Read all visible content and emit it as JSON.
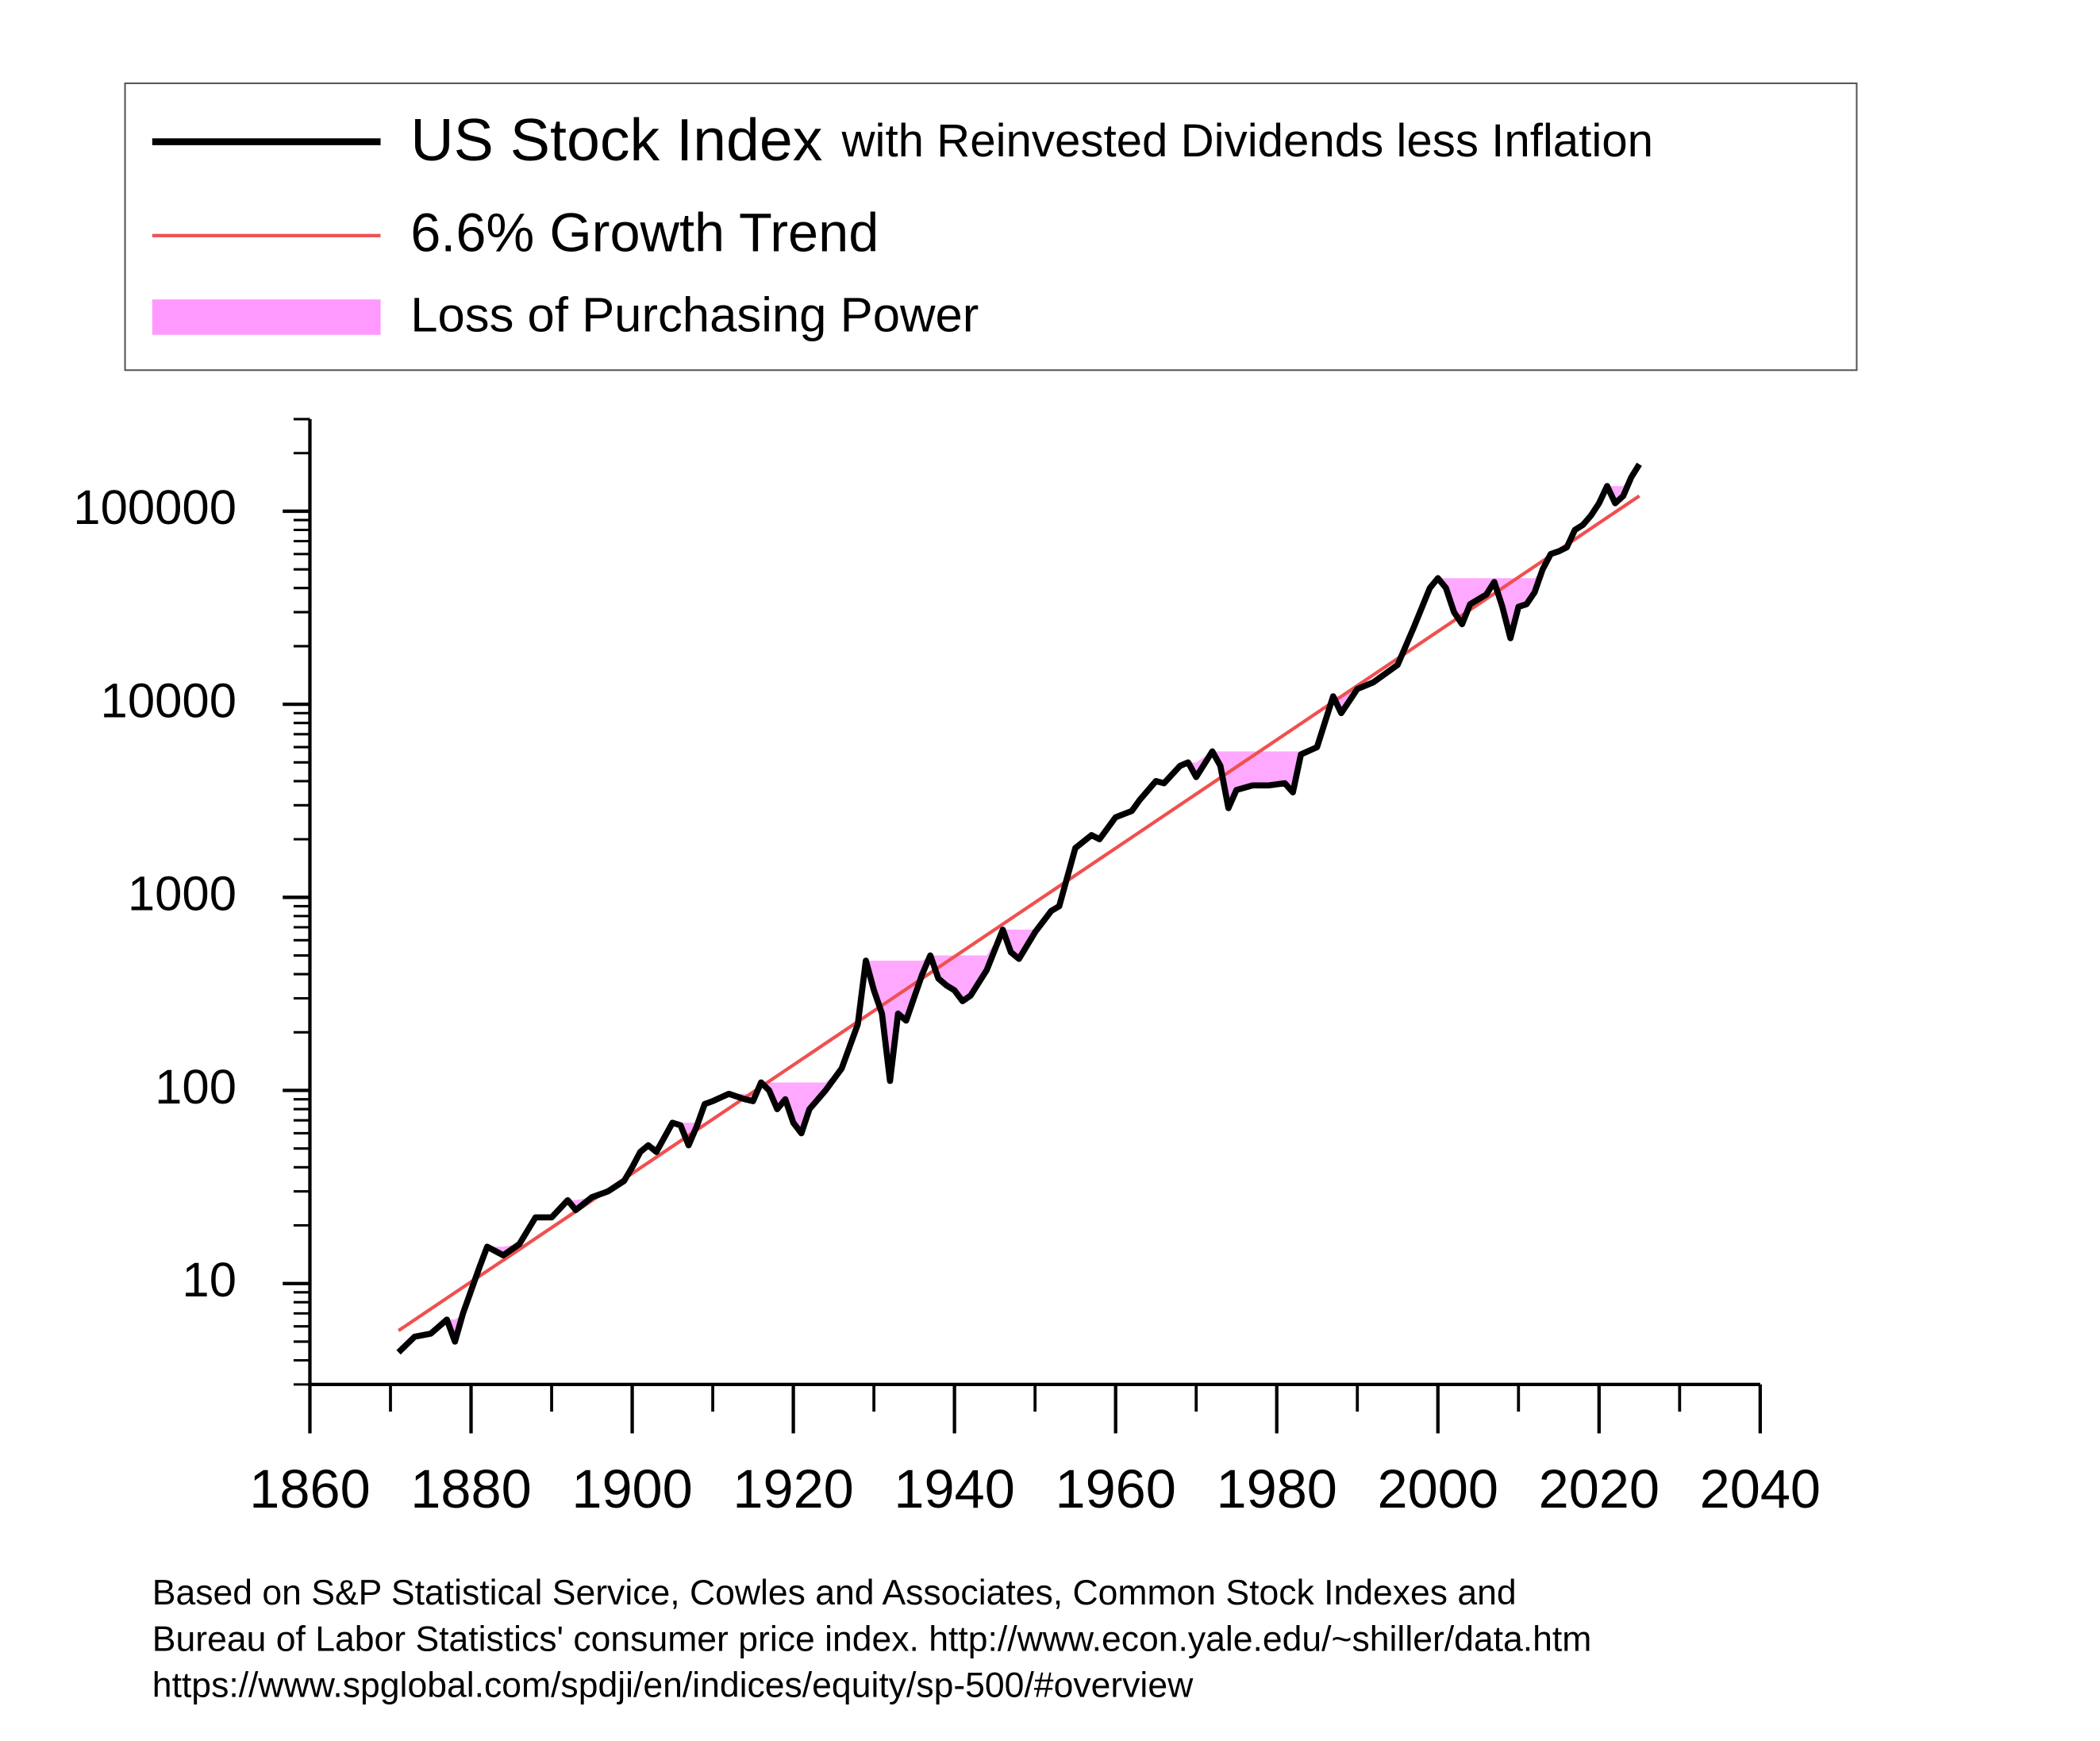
{
  "chart_data": {
    "type": "line",
    "log_y": true,
    "xlim": [
      1860,
      2040
    ],
    "xticks": [
      1860,
      1880,
      1900,
      1920,
      1940,
      1960,
      1980,
      2000,
      2020,
      2040
    ],
    "xminorticks": [
      1870,
      1890,
      1910,
      1930,
      1950,
      1970,
      1990,
      2010,
      2030
    ],
    "ylim": [
      3,
      300000
    ],
    "yticks": [
      10,
      100,
      1000,
      10000,
      100000
    ],
    "yminorticks": [
      3,
      4,
      5,
      6,
      7,
      8,
      9,
      20,
      30,
      40,
      50,
      60,
      70,
      80,
      90,
      200,
      300,
      400,
      500,
      600,
      700,
      800,
      900,
      2000,
      3000,
      4000,
      5000,
      6000,
      7000,
      8000,
      9000,
      20000,
      30000,
      40000,
      50000,
      60000,
      70000,
      80000,
      90000,
      200000,
      300000
    ],
    "legend_note": "with Reinvested Dividends less Inflation",
    "series": [
      {
        "name": "US Stock Index",
        "color": "#000000",
        "x": [
          1871,
          1873,
          1875,
          1877,
          1878,
          1879,
          1881,
          1882,
          1884,
          1886,
          1888,
          1890,
          1892,
          1893,
          1895,
          1897,
          1899,
          1900,
          1901,
          1902,
          1903,
          1905,
          1906,
          1907,
          1908,
          1909,
          1910,
          1911,
          1912,
          1914,
          1915,
          1916,
          1917,
          1918,
          1919,
          1920,
          1921,
          1922,
          1924,
          1926,
          1928,
          1929,
          1930,
          1931,
          1932,
          1933,
          1934,
          1936,
          1937,
          1938,
          1939,
          1940,
          1941,
          1942,
          1944,
          1946,
          1947,
          1948,
          1950,
          1952,
          1953,
          1955,
          1957,
          1958,
          1960,
          1962,
          1963,
          1965,
          1966,
          1968,
          1969,
          1970,
          1972,
          1973,
          1974,
          1975,
          1977,
          1979,
          1981,
          1982,
          1983,
          1985,
          1987,
          1988,
          1990,
          1992,
          1995,
          1997,
          1999,
          2000,
          2001,
          2002,
          2003,
          2004,
          2006,
          2007,
          2008,
          2009,
          2010,
          2011,
          2012,
          2013,
          2014,
          2015,
          2016,
          2017,
          2018,
          2019,
          2020,
          2021,
          2022,
          2023,
          2024,
          2025
        ],
        "values": [
          4.4,
          5.3,
          5.5,
          6.5,
          5,
          7,
          12,
          15.5,
          14,
          16,
          22,
          22,
          27,
          24,
          28,
          30,
          34,
          40,
          48,
          52,
          48,
          68,
          66,
          52,
          65,
          85,
          88,
          92,
          96,
          90,
          88,
          110,
          100,
          80,
          90,
          68,
          60,
          80,
          100,
          130,
          220,
          470,
          330,
          250,
          112,
          250,
          230,
          400,
          500,
          380,
          350,
          330,
          290,
          310,
          420,
          680,
          520,
          480,
          660,
          850,
          900,
          1800,
          2100,
          2000,
          2600,
          2800,
          3200,
          4000,
          3900,
          4800,
          5000,
          4200,
          5700,
          4800,
          2900,
          3600,
          3800,
          3800,
          3900,
          3500,
          5500,
          6000,
          11000,
          9000,
          12000,
          13000,
          16000,
          25000,
          40000,
          45000,
          40000,
          30000,
          26000,
          33000,
          37000,
          43000,
          32000,
          22000,
          32000,
          33000,
          38000,
          50000,
          60000,
          62000,
          65000,
          80000,
          85000,
          95000,
          110000,
          135000,
          110000,
          120000,
          150000,
          175000
        ]
      },
      {
        "name": "6.6% Growth Trend",
        "color": "#f05050",
        "x": [
          1871,
          2025
        ],
        "values": [
          5.7,
          120000
        ]
      },
      {
        "name": "Loss of Purchasing Power",
        "color": "#ff99ff"
      }
    ],
    "source": [
      "Based on S&P Statistical Service, Cowles and Associates, Common Stock Indexes and",
      "Bureau of Labor Statistics' consumer price index.  http://www.econ.yale.edu/~shiller/data.htm",
      "https://www.spglobal.com/spdji/en/indices/equity/sp-500/#overview"
    ]
  }
}
